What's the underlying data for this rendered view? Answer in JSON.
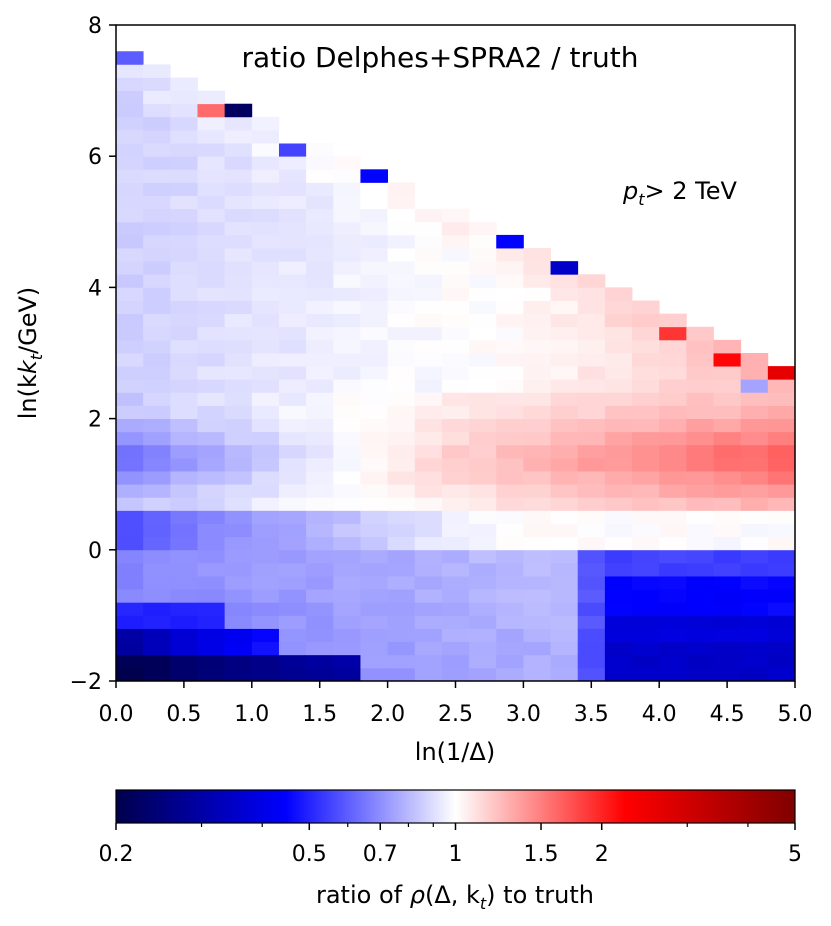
{
  "chart_data": {
    "type": "heatmap",
    "title": "ratio Delphes+SPRA2 / truth",
    "annotation": "> 2 TeV",
    "annotation_var": "p",
    "annotation_sub": "t",
    "xlabel": "ln(1/Δ)",
    "ylabel_main": "ln(k",
    "ylabel_sub": "t",
    "ylabel_tail": "/GeV)",
    "xlim": [
      0,
      5
    ],
    "ylim": [
      -2,
      8
    ],
    "xticks": [
      "0.0",
      "0.5",
      "1.0",
      "1.5",
      "2.0",
      "2.5",
      "3.0",
      "3.5",
      "4.0",
      "4.5",
      "5.0"
    ],
    "yticks": [
      "−2",
      "0",
      "2",
      "4",
      "6",
      "8"
    ],
    "grid": false,
    "colorbar": {
      "label_prefix": "ratio of ",
      "label_rho": "ρ",
      "label_args": "(Δ, k",
      "label_sub": "t",
      "label_suffix": ") to truth",
      "range": [
        0.2,
        5
      ],
      "scale": "log",
      "ticks": [
        {
          "value": 0.2,
          "label": "0.2"
        },
        {
          "value": 0.5,
          "label": "0.5"
        },
        {
          "value": 0.7,
          "label": "0.7"
        },
        {
          "value": 1,
          "label": "1"
        },
        {
          "value": 1.5,
          "label": "1.5"
        },
        {
          "value": 2,
          "label": "2"
        },
        {
          "value": 5,
          "label": "5"
        }
      ],
      "minor_ticks": [
        0.3,
        0.4,
        0.6,
        0.8,
        0.9,
        3,
        4
      ]
    },
    "grid_bins": {
      "x_bins": 25,
      "y_bins": 50,
      "x_range": [
        0,
        5
      ],
      "y_range": [
        -2,
        8
      ]
    },
    "anomalies": [
      {
        "x": 0.8,
        "y": 6.7,
        "value": 0.22
      },
      {
        "x": 1.3,
        "y": 6.1,
        "value": 0.55
      },
      {
        "x": 1.9,
        "y": 5.7,
        "value": 0.45
      },
      {
        "x": 2.9,
        "y": 4.7,
        "value": 0.45
      },
      {
        "x": 3.3,
        "y": 4.3,
        "value": 0.35
      },
      {
        "x": 4.9,
        "y": 2.7,
        "value": 2.6
      },
      {
        "x": 4.5,
        "y": 2.9,
        "value": 2.2
      },
      {
        "x": 4.1,
        "y": 3.3,
        "value": 1.9
      },
      {
        "x": 0.1,
        "y": 7.5,
        "value": 0.6
      },
      {
        "x": 0.7,
        "y": 6.7,
        "value": 1.6
      },
      {
        "x": 4.7,
        "y": 2.5,
        "value": 0.75
      }
    ]
  }
}
